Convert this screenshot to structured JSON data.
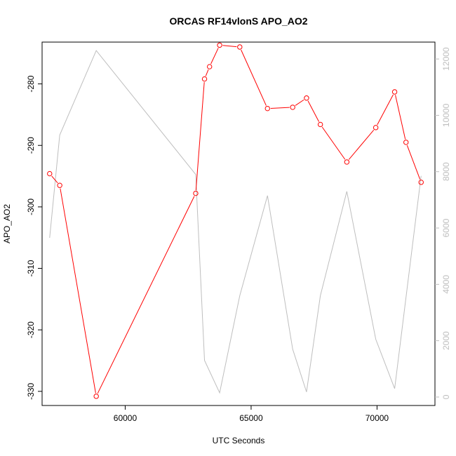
{
  "chart_data": {
    "type": "line",
    "title": "ORCAS RF14vlonS APO_AO2",
    "xlabel": "UTC Seconds",
    "ylabel": "APO_AO2",
    "y2label": "",
    "xlim": [
      56700,
      72300
    ],
    "ylim": [
      -332.3,
      -273.2
    ],
    "y2lim": [
      -300,
      12600
    ],
    "x_ticks": [
      60000,
      65000,
      70000
    ],
    "x_tick_labels": [
      "60000",
      "65000",
      "70000"
    ],
    "y_ticks": [
      -330,
      -320,
      -310,
      -300,
      -290,
      -280
    ],
    "y_tick_labels": [
      "-330",
      "-320",
      "-310",
      "-300",
      "-290",
      "-280"
    ],
    "y2_ticks": [
      0,
      2000,
      4000,
      6000,
      8000,
      10000,
      12000
    ],
    "y2_tick_labels": [
      "0",
      "2000",
      "4000",
      "6000",
      "8000",
      "10000",
      "12000"
    ],
    "grid": false,
    "series": [
      {
        "name": "",
        "axis": "left",
        "color": "#ff0000",
        "markers": true,
        "x": [
          57000,
          57400,
          58850,
          62800,
          63150,
          63350,
          63750,
          64550,
          65650,
          66650,
          67200,
          67750,
          68800,
          69950,
          70700,
          71150,
          71750
        ],
        "y": [
          -294.6,
          -296.5,
          -330.8,
          -297.8,
          -279.2,
          -277.2,
          -273.7,
          -274.0,
          -284.0,
          -283.8,
          -282.3,
          -286.6,
          -292.7,
          -287.1,
          -281.3,
          -289.5,
          -296.0
        ]
      },
      {
        "name": "",
        "axis": "right",
        "color": "#bebebe",
        "markers": false,
        "x": [
          57000,
          57400,
          58850,
          62800,
          63150,
          63750,
          64550,
          65650,
          66650,
          67200,
          67750,
          68800,
          69950,
          70700,
          71750
        ],
        "y": [
          5650,
          9300,
          12300,
          7900,
          1300,
          150,
          3600,
          7150,
          1700,
          180,
          3600,
          7300,
          2050,
          300,
          7850
        ]
      }
    ]
  }
}
